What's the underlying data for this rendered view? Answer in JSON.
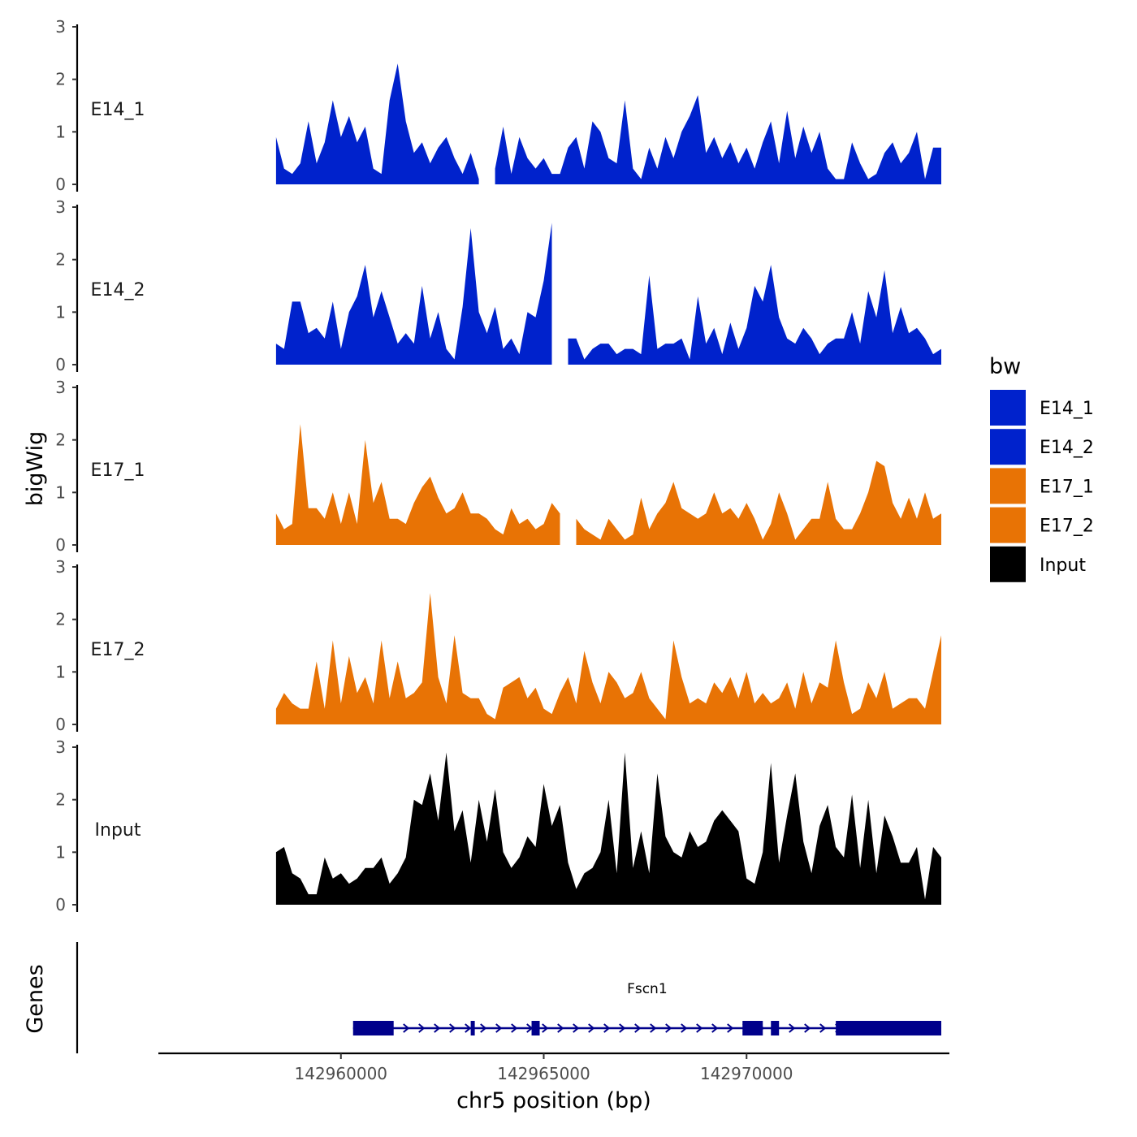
{
  "chart_data": {
    "type": "area",
    "title": "",
    "xlabel": "chr5 position (bp)",
    "ylabel": "bigWig",
    "gene_panel_label": "Genes",
    "xlim": [
      142955500,
      142975000
    ],
    "x_ticks": [
      142960000,
      142965000,
      142970000
    ],
    "x_tick_labels": [
      "142960000",
      "142965000",
      "142970000"
    ],
    "ylim": [
      0,
      3
    ],
    "y_ticks": [
      0,
      1,
      2,
      3
    ],
    "y_tick_labels": [
      "0",
      "1",
      "2",
      "3"
    ],
    "legend": {
      "title": "bw",
      "placement": "right",
      "entries": [
        {
          "name": "E14_1",
          "color": "#0022CC"
        },
        {
          "name": "E14_2",
          "color": "#0022CC"
        },
        {
          "name": "E17_1",
          "color": "#E87305"
        },
        {
          "name": "E17_2",
          "color": "#E87305"
        },
        {
          "name": "Input",
          "color": "#000000"
        }
      ]
    },
    "series": [
      {
        "name": "E14_1",
        "color": "#0022CC",
        "x": [
          142958400,
          142958600,
          142958800,
          142959000,
          142959200,
          142959400,
          142959600,
          142959800,
          142960000,
          142960200,
          142960400,
          142960600,
          142960800,
          142961000,
          142961200,
          142961400,
          142961600,
          142961800,
          142962000,
          142962200,
          142962400,
          142962600,
          142962800,
          142963000,
          142963200,
          142963400,
          142963600,
          142963800,
          142964000,
          142964200,
          142964400,
          142964600,
          142964800,
          142965000,
          142965200,
          142965400,
          142965600,
          142965800,
          142966000,
          142966200,
          142966400,
          142966600,
          142966800,
          142967000,
          142967200,
          142967400,
          142967600,
          142967800,
          142968000,
          142968200,
          142968400,
          142968600,
          142968800,
          142969000,
          142969200,
          142969400,
          142969600,
          142969800,
          142970000,
          142970200,
          142970400,
          142970600,
          142970800,
          142971000,
          142971200,
          142971400,
          142971600,
          142971800,
          142972000,
          142972200,
          142972400,
          142972600,
          142972800,
          142973000,
          142973200,
          142973400,
          142973600,
          142973800,
          142974000,
          142974200,
          142974400,
          142974600,
          142974800
        ],
        "values": [
          0.9,
          0.3,
          0.2,
          0.4,
          1.2,
          0.4,
          0.8,
          1.6,
          0.9,
          1.3,
          0.8,
          1.1,
          0.3,
          0.2,
          1.6,
          2.3,
          1.2,
          0.6,
          0.8,
          0.4,
          0.7,
          0.9,
          0.5,
          0.2,
          0.6,
          0.1,
          0.4,
          0.3,
          1.1,
          0.2,
          0.9,
          0.5,
          0.3,
          0.5,
          0.2,
          0.2,
          0.7,
          0.9,
          0.3,
          1.2,
          1.0,
          0.5,
          0.4,
          1.6,
          0.3,
          0.1,
          0.7,
          0.3,
          0.9,
          0.5,
          1.0,
          1.3,
          1.7,
          0.6,
          0.9,
          0.5,
          0.8,
          0.4,
          0.7,
          0.3,
          0.8,
          1.2,
          0.4,
          1.4,
          0.5,
          1.1,
          0.6,
          1.0,
          0.3,
          0.1,
          0.1,
          0.8,
          0.4,
          0.1,
          0.2,
          0.6,
          0.8,
          0.4,
          0.6,
          1.0,
          0.1,
          0.7,
          0.7
        ],
        "gaps": [
          [
            142963500,
            142963700
          ],
          [
            142968100,
            142968200
          ],
          [
            142970900,
            142971000
          ],
          [
            142972900,
            142973000
          ]
        ]
      },
      {
        "name": "E14_2",
        "color": "#0022CC",
        "x": [
          142958400,
          142958600,
          142958800,
          142959000,
          142959200,
          142959400,
          142959600,
          142959800,
          142960000,
          142960200,
          142960400,
          142960600,
          142960800,
          142961000,
          142961200,
          142961400,
          142961600,
          142961800,
          142962000,
          142962200,
          142962400,
          142962600,
          142962800,
          142963000,
          142963200,
          142963400,
          142963600,
          142963800,
          142964000,
          142964200,
          142964400,
          142964600,
          142964800,
          142965000,
          142965200,
          142965400,
          142965600,
          142965800,
          142966000,
          142966200,
          142966400,
          142966600,
          142966800,
          142967000,
          142967200,
          142967400,
          142967600,
          142967800,
          142968000,
          142968200,
          142968400,
          142968600,
          142968800,
          142969000,
          142969200,
          142969400,
          142969600,
          142969800,
          142970000,
          142970200,
          142970400,
          142970600,
          142970800,
          142971000,
          142971200,
          142971400,
          142971600,
          142971800,
          142972000,
          142972200,
          142972400,
          142972600,
          142972800,
          142973000,
          142973200,
          142973400,
          142973600,
          142973800,
          142974000,
          142974200,
          142974400,
          142974600,
          142974800
        ],
        "values": [
          0.4,
          0.3,
          1.2,
          1.2,
          0.6,
          0.7,
          0.5,
          1.2,
          0.3,
          1.0,
          1.3,
          1.9,
          0.9,
          1.4,
          0.9,
          0.4,
          0.6,
          0.4,
          1.5,
          0.5,
          1.0,
          0.3,
          0.1,
          1.1,
          2.6,
          1.0,
          0.6,
          1.1,
          0.3,
          0.5,
          0.2,
          1.0,
          0.9,
          1.6,
          2.7,
          1.0,
          0.5,
          0.5,
          0.1,
          0.3,
          0.4,
          0.4,
          0.2,
          0.3,
          0.3,
          0.2,
          1.7,
          0.3,
          0.4,
          0.4,
          0.5,
          0.1,
          1.3,
          0.4,
          0.7,
          0.2,
          0.8,
          0.3,
          0.7,
          1.5,
          1.2,
          1.9,
          0.9,
          0.5,
          0.4,
          0.7,
          0.5,
          0.2,
          0.4,
          0.5,
          0.5,
          1.0,
          0.4,
          1.4,
          0.9,
          1.8,
          0.6,
          1.1,
          0.6,
          0.7,
          0.5,
          0.2,
          0.3
        ],
        "gaps": [
          [
            142963700,
            142963800
          ],
          [
            142965300,
            142965500
          ],
          [
            142965700,
            142965800
          ],
          [
            142966000,
            142966100
          ],
          [
            142968100,
            142968200
          ],
          [
            142969800,
            142969900
          ],
          [
            142973400,
            142973500
          ],
          [
            142974300,
            142974400
          ]
        ]
      },
      {
        "name": "E17_1",
        "color": "#E87305",
        "x": [
          142958400,
          142958600,
          142958800,
          142959000,
          142959200,
          142959400,
          142959600,
          142959800,
          142960000,
          142960200,
          142960400,
          142960600,
          142960800,
          142961000,
          142961200,
          142961400,
          142961600,
          142961800,
          142962000,
          142962200,
          142962400,
          142962600,
          142962800,
          142963000,
          142963200,
          142963400,
          142963600,
          142963800,
          142964000,
          142964200,
          142964400,
          142964600,
          142964800,
          142965000,
          142965200,
          142965400,
          142965600,
          142965800,
          142966000,
          142966200,
          142966400,
          142966600,
          142966800,
          142967000,
          142967200,
          142967400,
          142967600,
          142967800,
          142968000,
          142968200,
          142968400,
          142968600,
          142968800,
          142969000,
          142969200,
          142969400,
          142969600,
          142969800,
          142970000,
          142970200,
          142970400,
          142970600,
          142970800,
          142971000,
          142971200,
          142971400,
          142971600,
          142971800,
          142972000,
          142972200,
          142972400,
          142972600,
          142972800,
          142973000,
          142973200,
          142973400,
          142973600,
          142973800,
          142974000,
          142974200,
          142974400,
          142974600,
          142974800
        ],
        "values": [
          0.6,
          0.3,
          0.4,
          2.3,
          0.7,
          0.7,
          0.5,
          1.0,
          0.4,
          1.0,
          0.4,
          2.0,
          0.8,
          1.2,
          0.5,
          0.5,
          0.4,
          0.8,
          1.1,
          1.3,
          0.9,
          0.6,
          0.7,
          1.0,
          0.6,
          0.6,
          0.5,
          0.3,
          0.2,
          0.7,
          0.4,
          0.5,
          0.3,
          0.4,
          0.8,
          0.6,
          0.9,
          0.5,
          0.3,
          0.2,
          0.1,
          0.5,
          0.3,
          0.1,
          0.2,
          0.9,
          0.3,
          0.6,
          0.8,
          1.2,
          0.7,
          0.6,
          0.5,
          0.6,
          1.0,
          0.6,
          0.7,
          0.5,
          0.8,
          0.5,
          0.1,
          0.4,
          1.0,
          0.6,
          0.1,
          0.3,
          0.5,
          0.5,
          1.2,
          0.5,
          0.3,
          0.3,
          0.6,
          1.0,
          1.6,
          1.5,
          0.8,
          0.5,
          0.9,
          0.5,
          1.0,
          0.5,
          0.6
        ],
        "gaps": [
          [
            142965000,
            142965200
          ],
          [
            142965500,
            142965700
          ],
          [
            142966700,
            142966800
          ],
          [
            142970300,
            142970400
          ],
          [
            142972900,
            142973000
          ]
        ]
      },
      {
        "name": "E17_2",
        "color": "#E87305",
        "x": [
          142958400,
          142958600,
          142958800,
          142959000,
          142959200,
          142959400,
          142959600,
          142959800,
          142960000,
          142960200,
          142960400,
          142960600,
          142960800,
          142961000,
          142961200,
          142961400,
          142961600,
          142961800,
          142962000,
          142962200,
          142962400,
          142962600,
          142962800,
          142963000,
          142963200,
          142963400,
          142963600,
          142963800,
          142964000,
          142964200,
          142964400,
          142964600,
          142964800,
          142965000,
          142965200,
          142965400,
          142965600,
          142965800,
          142966000,
          142966200,
          142966400,
          142966600,
          142966800,
          142967000,
          142967200,
          142967400,
          142967600,
          142967800,
          142968000,
          142968200,
          142968400,
          142968600,
          142968800,
          142969000,
          142969200,
          142969400,
          142969600,
          142969800,
          142970000,
          142970200,
          142970400,
          142970600,
          142970800,
          142971000,
          142971200,
          142971400,
          142971600,
          142971800,
          142972000,
          142972200,
          142972400,
          142972600,
          142972800,
          142973000,
          142973200,
          142973400,
          142973600,
          142973800,
          142974000,
          142974200,
          142974400,
          142974600,
          142974800
        ],
        "values": [
          0.3,
          0.6,
          0.4,
          0.3,
          0.3,
          1.2,
          0.3,
          1.6,
          0.4,
          1.3,
          0.6,
          0.9,
          0.4,
          1.6,
          0.5,
          1.2,
          0.5,
          0.6,
          0.8,
          2.5,
          0.9,
          0.4,
          1.7,
          0.6,
          0.5,
          0.5,
          0.2,
          0.1,
          0.7,
          0.8,
          0.9,
          0.5,
          0.7,
          0.3,
          0.2,
          0.6,
          0.9,
          0.4,
          1.4,
          0.8,
          0.4,
          1.0,
          0.8,
          0.5,
          0.6,
          1.0,
          0.5,
          0.3,
          0.1,
          1.6,
          0.9,
          0.4,
          0.5,
          0.4,
          0.8,
          0.6,
          0.9,
          0.5,
          1.0,
          0.4,
          0.6,
          0.4,
          0.5,
          0.8,
          0.3,
          1.0,
          0.4,
          0.8,
          0.7,
          1.6,
          0.8,
          0.2,
          0.3,
          0.8,
          0.5,
          1.0,
          0.3,
          0.4,
          0.5,
          0.5,
          0.3,
          1.0,
          1.7
        ],
        "gaps": [
          [
            142963400,
            142963600
          ],
          [
            142969200,
            142969300
          ],
          [
            142972100,
            142972200
          ]
        ]
      },
      {
        "name": "Input",
        "color": "#000000",
        "x": [
          142958400,
          142958600,
          142958800,
          142959000,
          142959200,
          142959400,
          142959600,
          142959800,
          142960000,
          142960200,
          142960400,
          142960600,
          142960800,
          142961000,
          142961200,
          142961400,
          142961600,
          142961800,
          142962000,
          142962200,
          142962400,
          142962600,
          142962800,
          142963000,
          142963200,
          142963400,
          142963600,
          142963800,
          142964000,
          142964200,
          142964400,
          142964600,
          142964800,
          142965000,
          142965200,
          142965400,
          142965600,
          142965800,
          142966000,
          142966200,
          142966400,
          142966600,
          142966800,
          142967000,
          142967200,
          142967400,
          142967600,
          142967800,
          142968000,
          142968200,
          142968400,
          142968600,
          142968800,
          142969000,
          142969200,
          142969400,
          142969600,
          142969800,
          142970000,
          142970200,
          142970400,
          142970600,
          142970800,
          142971000,
          142971200,
          142971400,
          142971600,
          142971800,
          142972000,
          142972200,
          142972400,
          142972600,
          142972800,
          142973000,
          142973200,
          142973400,
          142973600,
          142973800,
          142974000,
          142974200,
          142974400,
          142974600,
          142974800
        ],
        "values": [
          1.0,
          1.1,
          0.6,
          0.5,
          0.2,
          0.2,
          0.9,
          0.5,
          0.6,
          0.4,
          0.5,
          0.7,
          0.7,
          0.9,
          0.4,
          0.6,
          0.9,
          2.0,
          1.9,
          2.5,
          1.6,
          2.9,
          1.4,
          1.8,
          0.8,
          2.0,
          1.2,
          2.2,
          1.0,
          0.7,
          0.9,
          1.3,
          1.1,
          2.3,
          1.5,
          1.9,
          0.8,
          0.3,
          0.6,
          0.7,
          1.0,
          2.0,
          0.6,
          2.9,
          0.7,
          1.4,
          0.6,
          2.5,
          1.3,
          1.0,
          0.9,
          1.4,
          1.1,
          1.2,
          1.6,
          1.8,
          1.6,
          1.4,
          0.5,
          0.4,
          1.0,
          2.7,
          0.8,
          1.7,
          2.5,
          1.2,
          0.6,
          1.5,
          1.9,
          1.1,
          0.9,
          2.1,
          0.7,
          2.0,
          0.6,
          1.7,
          1.3,
          0.8,
          0.8,
          1.1,
          0.1,
          1.1,
          0.9
        ],
        "gaps": [
          [
            142958600,
            142958800
          ],
          [
            142969000,
            142969100
          ]
        ]
      }
    ],
    "gene": {
      "name": "Fscn1",
      "strand": "+",
      "start": 142960300,
      "end": 142974800,
      "exons": [
        [
          142960300,
          142961300
        ],
        [
          142963200,
          142963300
        ],
        [
          142964700,
          142964900
        ],
        [
          142969900,
          142970400
        ],
        [
          142970600,
          142970800
        ],
        [
          142972200,
          142974800
        ]
      ]
    },
    "grid": false
  }
}
